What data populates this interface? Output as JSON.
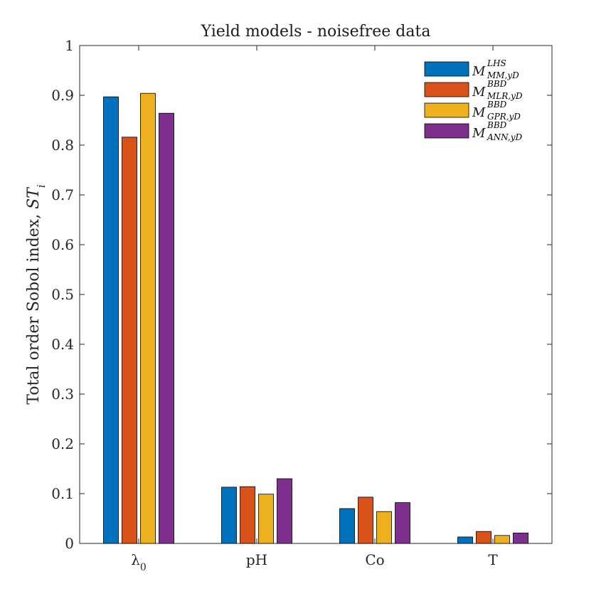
{
  "chart_data": {
    "type": "bar",
    "title": "Yield models - noisefree data",
    "ylabel": "Total order Sobol index, STi",
    "xlabel": "",
    "ylim": [
      0,
      1
    ],
    "yticks": [
      0,
      0.1,
      0.2,
      0.3,
      0.4,
      0.5,
      0.6,
      0.7,
      0.8,
      0.9,
      1
    ],
    "ytick_labels": [
      "0",
      "0.1",
      "0.2",
      "0.3",
      "0.4",
      "0.5",
      "0.6",
      "0.7",
      "0.8",
      "0.9",
      "1"
    ],
    "categories": [
      "λ0",
      "pH",
      "Co",
      "T"
    ],
    "grid": false,
    "legend_position": "top-right",
    "series": [
      {
        "name": "M^LHS_MM,yD",
        "values": [
          0.897,
          0.113,
          0.07,
          0.013
        ],
        "color": "#0072BD"
      },
      {
        "name": "M^BBD_MLR,yD",
        "values": [
          0.816,
          0.114,
          0.093,
          0.024
        ],
        "color": "#D95319"
      },
      {
        "name": "M^BBD_GPR,yD",
        "values": [
          0.904,
          0.099,
          0.064,
          0.016
        ],
        "color": "#EDB120"
      },
      {
        "name": "M^BBD_ANN,yD",
        "values": [
          0.864,
          0.13,
          0.082,
          0.021
        ],
        "color": "#7E2F8E"
      }
    ],
    "legend": [
      {
        "main": "M",
        "sup": "LHS",
        "sub": "MM,yD"
      },
      {
        "main": "M",
        "sup": "BBD",
        "sub": "MLR,yD"
      },
      {
        "main": "M",
        "sup": "BBD",
        "sub": "GPR,yD"
      },
      {
        "main": "M",
        "sup": "BBD",
        "sub": "ANN,yD"
      }
    ]
  }
}
